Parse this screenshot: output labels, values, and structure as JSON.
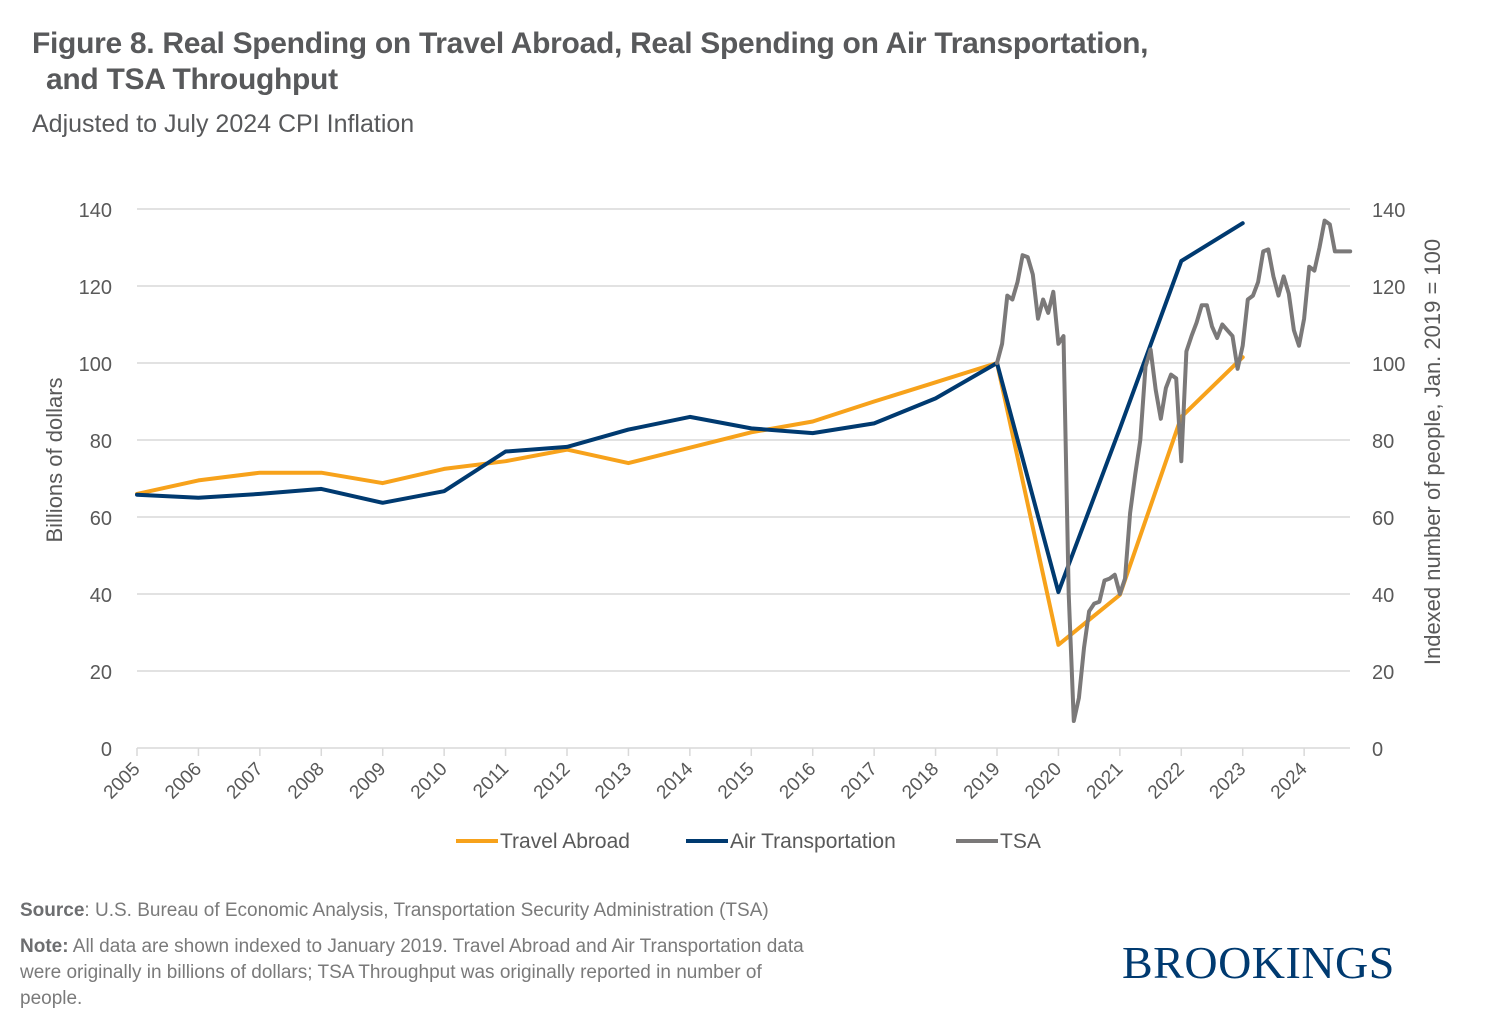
{
  "header": {
    "title_line1": "Figure 8. Real Spending on Travel Abroad, Real Spending on Air Transportation,",
    "title_line2": "and TSA Throughput",
    "subtitle": "Adjusted to July 2024 CPI Inflation"
  },
  "footer": {
    "source_label": "Source",
    "source_text": ": U.S. Bureau of Economic Analysis, Transportation Security Administration (TSA)",
    "note_label": "Note:",
    "note_text": " All data are shown indexed to January 2019. Travel Abroad and Air Transportation data were originally in billions of dollars; TSA Throughput was originally reported in number of people.",
    "logo": "BROOKINGS"
  },
  "colors": {
    "travel_abroad": "#f7a21b",
    "air_transportation": "#003a70",
    "tsa": "#7b7979",
    "grid": "#d9d9d9",
    "text": "#595959",
    "logo": "#003a70"
  },
  "chart_data": {
    "type": "line",
    "title": "Figure 8. Real Spending on Travel Abroad, Real Spending on Air Transportation, and TSA Throughput",
    "subtitle": "Adjusted to July 2024 CPI Inflation",
    "xlabel": "",
    "ylabel": "Billions of dollars",
    "y2label": "Indexed number of people, Jan. 2019 = 100",
    "ylim": [
      0,
      140
    ],
    "y2lim": [
      0,
      140
    ],
    "yticks": [
      0,
      20,
      40,
      60,
      80,
      100,
      120,
      140
    ],
    "y2ticks": [
      0,
      20,
      40,
      60,
      80,
      100,
      120,
      140
    ],
    "xlim": [
      2005,
      2024.8
    ],
    "xticks": [
      "2005",
      "2006",
      "2007",
      "2008",
      "2009",
      "2010",
      "2011",
      "2012",
      "2013",
      "2014",
      "2015",
      "2016",
      "2017",
      "2018",
      "2019",
      "2020",
      "2021",
      "2022",
      "2023",
      "2024"
    ],
    "grid": true,
    "legend_position": "bottom",
    "series": [
      {
        "name": "Travel Abroad",
        "axis": "left",
        "x": [
          2005,
          2006,
          2007,
          2008,
          2009,
          2010,
          2011,
          2012,
          2013,
          2014,
          2015,
          2016,
          2017,
          2018,
          2019,
          2020,
          2021,
          2022,
          2023
        ],
        "values": [
          66.0,
          69.5,
          71.5,
          71.5,
          68.8,
          72.5,
          74.5,
          77.5,
          74.0,
          78.0,
          82.0,
          84.8,
          90.0,
          95.0,
          100.0,
          26.8,
          39.8,
          86.0,
          101.5
        ]
      },
      {
        "name": "Air Transportation",
        "axis": "left",
        "x": [
          2005,
          2006,
          2007,
          2008,
          2009,
          2010,
          2011,
          2012,
          2013,
          2014,
          2015,
          2016,
          2017,
          2018,
          2019,
          2020,
          2021,
          2022,
          2023
        ],
        "values": [
          65.8,
          65.0,
          66.0,
          67.3,
          63.7,
          66.7,
          77.0,
          78.2,
          82.7,
          86.0,
          83.0,
          81.8,
          84.3,
          90.8,
          100.0,
          40.5,
          83.0,
          126.5,
          136.3
        ]
      },
      {
        "name": "TSA",
        "axis": "right",
        "x": [
          2019.0,
          2019.083,
          2019.167,
          2019.25,
          2019.333,
          2019.417,
          2019.5,
          2019.583,
          2019.667,
          2019.75,
          2019.833,
          2019.917,
          2020.0,
          2020.083,
          2020.167,
          2020.25,
          2020.333,
          2020.417,
          2020.5,
          2020.583,
          2020.667,
          2020.75,
          2020.833,
          2020.917,
          2021.0,
          2021.083,
          2021.167,
          2021.25,
          2021.333,
          2021.417,
          2021.5,
          2021.583,
          2021.667,
          2021.75,
          2021.833,
          2021.917,
          2022.0,
          2022.083,
          2022.167,
          2022.25,
          2022.333,
          2022.417,
          2022.5,
          2022.583,
          2022.667,
          2022.75,
          2022.833,
          2022.917,
          2023.0,
          2023.083,
          2023.167,
          2023.25,
          2023.333,
          2023.417,
          2023.5,
          2023.583,
          2023.667,
          2023.75,
          2023.833,
          2023.917,
          2024.0,
          2024.083,
          2024.167,
          2024.25,
          2024.333,
          2024.417,
          2024.5,
          2024.583,
          2024.667,
          2024.75
        ],
        "values": [
          100.0,
          105.0,
          117.5,
          116.5,
          121.0,
          128.0,
          127.5,
          123.0,
          111.5,
          116.5,
          113.0,
          118.5,
          105.0,
          107.0,
          40.0,
          7.0,
          13.0,
          26.0,
          35.5,
          37.5,
          38.0,
          43.5,
          44.0,
          45.0,
          40.0,
          44.0,
          61.0,
          71.0,
          80.0,
          99.0,
          103.5,
          93.0,
          85.5,
          93.5,
          97.0,
          96.0,
          74.5,
          103.0,
          107.0,
          110.5,
          115.0,
          115.0,
          109.5,
          106.5,
          110.0,
          108.5,
          107.0,
          98.5,
          104.5,
          116.5,
          117.5,
          121.0,
          129.0,
          129.5,
          122.5,
          117.5,
          122.5,
          118.0,
          108.5,
          104.5,
          111.5,
          125.0,
          124.0,
          130.0,
          137.0,
          136.0,
          129.0,
          129.0,
          129.0,
          129.0
        ]
      }
    ]
  }
}
